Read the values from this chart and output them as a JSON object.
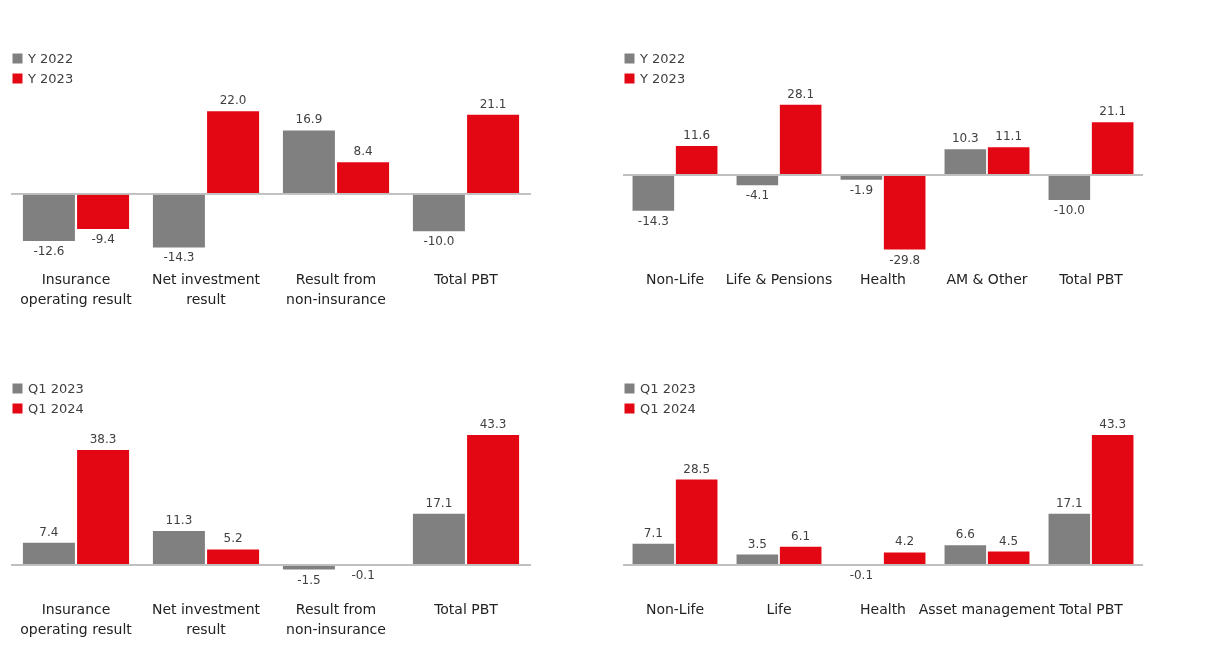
{
  "chart_data": [
    {
      "type": "bar",
      "categories": [
        "Insurance operating result",
        "Net investment result",
        "Result from non-insurance",
        "Total PBT"
      ],
      "legend": "top left",
      "series": [
        {
          "name": "Y 2022",
          "color": "#808080",
          "values": [
            -12.6,
            -14.3,
            16.9,
            -10.0
          ],
          "value_labels": [
            "-12.6",
            "-14.3",
            "16.9",
            "-10.0"
          ]
        },
        {
          "name": "Y 2023",
          "color": "#e30613",
          "values": [
            -9.4,
            22.0,
            8.4,
            21.1
          ],
          "value_labels": [
            "-9.4",
            "22.0",
            "8.4",
            "21.1"
          ]
        }
      ]
    },
    {
      "type": "bar",
      "categories": [
        "Non-Life",
        "Life & Pensions",
        "Health",
        "AM & Other",
        "Total PBT"
      ],
      "legend": "top left",
      "series": [
        {
          "name": "Y 2022",
          "color": "#808080",
          "values": [
            -14.3,
            -4.1,
            -1.9,
            10.3,
            -10.0
          ],
          "value_labels": [
            "-14.3",
            "-4.1",
            "-1.9",
            "10.3",
            "-10.0"
          ]
        },
        {
          "name": "Y 2023",
          "color": "#e30613",
          "values": [
            11.6,
            28.1,
            -29.8,
            11.1,
            21.1
          ],
          "value_labels": [
            "11.6",
            "28.1",
            "-29.8",
            "11.1",
            "21.1"
          ]
        }
      ]
    },
    {
      "type": "bar",
      "categories": [
        "Insurance operating result",
        "Net investment result",
        "Result from non-insurance",
        "Total PBT"
      ],
      "legend": "top left",
      "series": [
        {
          "name": "Q1 2023",
          "color": "#808080",
          "values": [
            7.4,
            11.3,
            -1.5,
            17.1
          ],
          "value_labels": [
            "7.4",
            "11.3",
            "-1.5",
            "17.1"
          ]
        },
        {
          "name": "Q1 2024",
          "color": "#e30613",
          "values": [
            38.3,
            5.2,
            -0.1,
            43.3
          ],
          "value_labels": [
            "38.3",
            "5.2",
            "-0.1",
            "43.3"
          ]
        }
      ]
    },
    {
      "type": "bar",
      "categories": [
        "Non-Life",
        "Life",
        "Health",
        "Asset management",
        "Total PBT"
      ],
      "legend": "top left",
      "series": [
        {
          "name": "Q1 2023",
          "color": "#808080",
          "values": [
            7.1,
            3.5,
            -0.1,
            6.6,
            17.1
          ],
          "value_labels": [
            "7.1",
            "3.5",
            "-0.1",
            "6.6",
            "17.1"
          ]
        },
        {
          "name": "Q1 2024",
          "color": "#e30613",
          "values": [
            28.5,
            6.1,
            4.2,
            4.5,
            43.3
          ],
          "value_labels": [
            "28.5",
            "6.1",
            "4.2",
            "4.5",
            "43.3"
          ]
        }
      ]
    }
  ]
}
